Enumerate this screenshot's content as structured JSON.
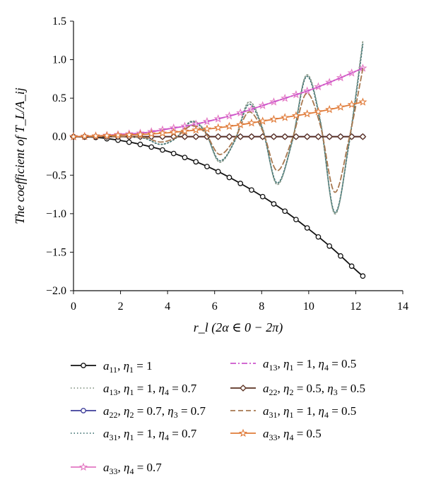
{
  "chart_data": {
    "type": "line",
    "xlabel": "r_l (2α ∈ 0 − 2π)",
    "ylabel": "The coefficient of T_L/A_ij",
    "xlim": [
      0,
      14
    ],
    "ylim": [
      -2.0,
      1.5
    ],
    "xticks": [
      "0",
      "2",
      "4",
      "6",
      "8",
      "10",
      "12",
      "14"
    ],
    "yticks": [
      "1.5",
      "1.0",
      "0.5",
      "0.0",
      "−0.5",
      "−1.0",
      "−1.5",
      "−2.0"
    ],
    "grid": false,
    "legend_position": "below plot, two columns",
    "series": [
      {
        "name": "a11, η1 = 1",
        "legend": {
          "sym": "a",
          "sub": "11",
          "rest": [
            [
              "η",
              "1",
              " = 1"
            ]
          ]
        },
        "color": "#111111",
        "style": "solid",
        "marker": "circle",
        "x": [
          0,
          1,
          2,
          3,
          4,
          5,
          6,
          7,
          8,
          9,
          10,
          11,
          12,
          12.3
        ],
        "y": [
          0,
          -0.01,
          -0.05,
          -0.11,
          -0.19,
          -0.3,
          -0.43,
          -0.59,
          -0.77,
          -0.97,
          -1.2,
          -1.45,
          -1.73,
          -1.81
        ]
      },
      {
        "name": "a13, η1 = 1, η4 = 0.7",
        "legend": {
          "sym": "a",
          "sub": "13",
          "rest": [
            [
              "η",
              "1",
              " = 1, "
            ],
            [
              "η",
              "4",
              " = 0.7"
            ]
          ]
        },
        "color": "#8a9a8a",
        "style": "dotted",
        "marker": "none",
        "x": [
          0,
          1,
          2,
          3,
          3.7,
          4.35,
          5.0,
          5.6,
          6.2,
          6.85,
          7.45,
          8.05,
          8.65,
          9.3,
          9.9,
          10.5,
          11.1,
          11.7,
          12.3
        ],
        "y": [
          0,
          0,
          0,
          -0.02,
          -0.1,
          -0.02,
          0.2,
          0.07,
          -0.33,
          -0.05,
          0.45,
          0.1,
          -0.62,
          -0.05,
          0.8,
          0.2,
          -1.0,
          -0.1,
          1.24
        ]
      },
      {
        "name": "a22, η2 = 0.7, η3 = 0.7",
        "legend": {
          "sym": "a",
          "sub": "22",
          "rest": [
            [
              "η",
              "2",
              " = 0.7, "
            ],
            [
              "η",
              "3",
              " = 0.7"
            ]
          ]
        },
        "color": "#3d3d99",
        "style": "solid",
        "marker": "circle",
        "x": [
          0,
          2,
          4,
          6,
          8,
          10,
          12.3
        ],
        "y": [
          0,
          0,
          0,
          0,
          0,
          0,
          0
        ]
      },
      {
        "name": "a31, η1 = 1, η4 = 0.7",
        "legend": {
          "sym": "a",
          "sub": "31",
          "rest": [
            [
              "η",
              "1",
              " = 1, "
            ],
            [
              "η",
              "4",
              " = 0.7"
            ]
          ]
        },
        "color": "#4a7a7a",
        "style": "dotted",
        "marker": "none",
        "x": [
          0,
          1,
          2,
          3,
          3.7,
          4.35,
          5.0,
          5.6,
          6.2,
          6.85,
          7.45,
          8.05,
          8.65,
          9.3,
          9.9,
          10.5,
          11.1,
          11.7,
          12.3
        ],
        "y": [
          0,
          0,
          0,
          -0.02,
          -0.1,
          -0.02,
          0.19,
          0.06,
          -0.31,
          -0.06,
          0.42,
          0.08,
          -0.6,
          -0.06,
          0.78,
          0.18,
          -0.98,
          -0.12,
          1.2
        ]
      },
      {
        "name": "a33, η4 = 0.7",
        "legend": {
          "sym": "a",
          "sub": "33",
          "rest": [
            [
              "η",
              "4",
              " = 0.7"
            ]
          ]
        },
        "color": "#e377c2",
        "style": "solid",
        "marker": "star",
        "x": [
          0,
          1,
          2,
          3,
          4,
          5,
          6,
          7,
          8,
          9,
          10,
          11,
          12,
          12.3
        ],
        "y": [
          0,
          0.01,
          0.03,
          0.05,
          0.1,
          0.15,
          0.22,
          0.3,
          0.4,
          0.5,
          0.6,
          0.72,
          0.85,
          0.89
        ]
      },
      {
        "name": "a13, η1 = 1, η4 = 0.5",
        "legend": {
          "sym": "a",
          "sub": "13",
          "rest": [
            [
              "η",
              "1",
              " = 1, "
            ],
            [
              "η",
              "4",
              " = 0.5"
            ]
          ]
        },
        "color": "#cc55cc",
        "style": "dashdot",
        "marker": "none",
        "x": [
          0,
          1,
          2,
          3,
          4,
          5,
          6,
          7,
          8,
          9,
          10,
          11,
          12,
          12.3
        ],
        "y": [
          0,
          0.01,
          0.03,
          0.05,
          0.1,
          0.15,
          0.22,
          0.3,
          0.4,
          0.5,
          0.6,
          0.72,
          0.85,
          0.89
        ]
      },
      {
        "name": "a22, η2 = 0.5, η3 = 0.5",
        "legend": {
          "sym": "a",
          "sub": "22",
          "rest": [
            [
              "η",
              "2",
              " = 0.5, "
            ],
            [
              "η",
              "3",
              " = 0.5"
            ]
          ]
        },
        "color": "#5a3020",
        "style": "solid",
        "marker": "diamond",
        "x": [
          0,
          2,
          4,
          6,
          8,
          10,
          12.3
        ],
        "y": [
          0,
          0,
          0,
          0,
          0,
          0,
          0
        ]
      },
      {
        "name": "a31, η1 = 1, η4 = 0.5",
        "legend": {
          "sym": "a",
          "sub": "31",
          "rest": [
            [
              "η",
              "1",
              " = 1, "
            ],
            [
              "η",
              "4",
              " = 0.5"
            ]
          ]
        },
        "color": "#a87850",
        "style": "dashed",
        "marker": "none",
        "x": [
          0,
          1,
          2,
          3,
          3.7,
          4.35,
          5.0,
          5.6,
          6.2,
          6.85,
          7.45,
          8.05,
          8.65,
          9.3,
          9.9,
          10.5,
          11.1,
          11.7,
          12.3
        ],
        "y": [
          0,
          0,
          0,
          -0.01,
          -0.07,
          -0.01,
          0.14,
          0.05,
          -0.23,
          -0.03,
          0.32,
          0.07,
          -0.44,
          -0.03,
          0.56,
          0.14,
          -0.72,
          -0.05,
          0.88
        ]
      },
      {
        "name": "a33, η4 = 0.5",
        "legend": {
          "sym": "a",
          "sub": "33",
          "rest": [
            [
              "η",
              "4",
              " = 0.5"
            ]
          ]
        },
        "color": "#e07b39",
        "style": "solid",
        "marker": "star",
        "x": [
          0,
          1,
          2,
          3,
          4,
          5,
          6,
          7,
          8,
          9,
          10,
          11,
          12,
          12.3
        ],
        "y": [
          0,
          0.01,
          0.02,
          0.03,
          0.05,
          0.08,
          0.11,
          0.15,
          0.2,
          0.25,
          0.3,
          0.36,
          0.43,
          0.45
        ]
      }
    ]
  }
}
